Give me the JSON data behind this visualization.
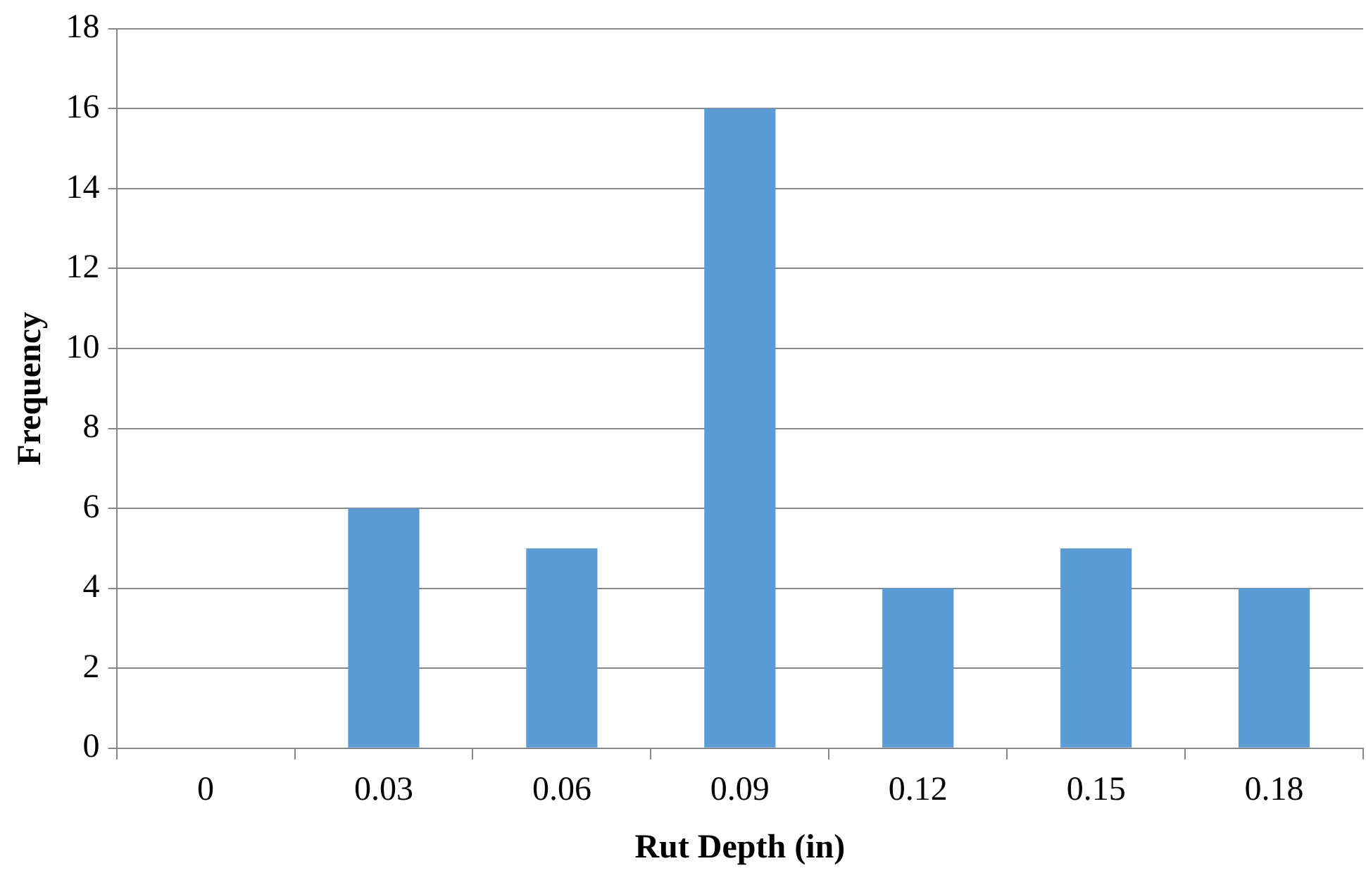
{
  "chart_data": {
    "type": "bar",
    "xlabel": "Rut Depth (in)",
    "ylabel": "Frequency",
    "categories": [
      "0",
      "0.03",
      "0.06",
      "0.09",
      "0.12",
      "0.15",
      "0.18"
    ],
    "values": [
      0,
      6,
      5,
      16,
      4,
      5,
      4
    ],
    "color": "#5b9bd5",
    "ylim": [
      0,
      18
    ],
    "yticks": [
      0,
      2,
      4,
      6,
      8,
      10,
      12,
      14,
      16,
      18
    ],
    "grid": "y",
    "legend": false
  }
}
